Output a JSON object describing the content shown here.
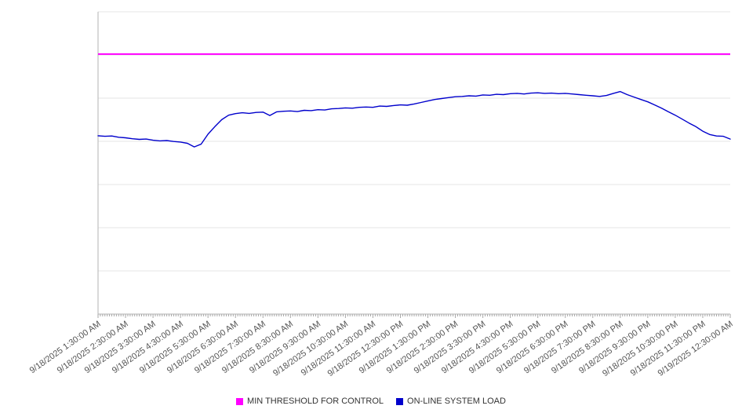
{
  "chart_data": {
    "type": "line",
    "title": "",
    "xlabel": "",
    "ylabel": "",
    "grid": true,
    "legend_position": "bottom-center",
    "y_axis_labels_visible": false,
    "ylim": [
      0,
      100
    ],
    "y_gridline_count": 8,
    "x_domain_minutes": [
      0,
      1380
    ],
    "tick_interval_minutes": 60,
    "minor_tick_interval_minutes": 5,
    "x_tick_labels": [
      "9/18/2025 1:30:00 AM",
      "9/18/2025 2:30:00 AM",
      "9/18/2025 3:30:00 AM",
      "9/18/2025 4:30:00 AM",
      "9/18/2025 5:30:00 AM",
      "9/18/2025 6:30:00 AM",
      "9/18/2025 7:30:00 AM",
      "9/18/2025 8:30:00 AM",
      "9/18/2025 9:30:00 AM",
      "9/18/2025 10:30:00 AM",
      "9/18/2025 11:30:00 AM",
      "9/18/2025 12:30:00 PM",
      "9/18/2025 1:30:00 PM",
      "9/18/2025 2:30:00 PM",
      "9/18/2025 3:30:00 PM",
      "9/18/2025 4:30:00 PM",
      "9/18/2025 5:30:00 PM",
      "9/18/2025 6:30:00 PM",
      "9/18/2025 7:30:00 PM",
      "9/18/2025 8:30:00 PM",
      "9/18/2025 9:30:00 PM",
      "9/18/2025 10:30:00 PM",
      "9/18/2025 11:30:00 PM",
      "9/19/2025 12:30:00 AM"
    ],
    "series": [
      {
        "name": "MIN THRESHOLD FOR CONTROL",
        "type": "threshold-line",
        "color": "#ff00ff",
        "value": 86
      },
      {
        "name": "ON-LINE SYSTEM LOAD",
        "type": "line",
        "color": "#0000cc",
        "start_label": "9/18/2025 1:30:00 AM",
        "step_minutes": 15,
        "values": [
          59.0,
          58.8,
          58.9,
          58.5,
          58.3,
          58.0,
          57.8,
          57.9,
          57.5,
          57.3,
          57.4,
          57.1,
          56.9,
          56.5,
          55.3,
          56.2,
          59.5,
          62.0,
          64.3,
          65.8,
          66.3,
          66.6,
          66.4,
          66.7,
          66.8,
          65.7,
          66.9,
          67.1,
          67.2,
          67.0,
          67.4,
          67.3,
          67.6,
          67.5,
          67.9,
          68.0,
          68.2,
          68.1,
          68.4,
          68.5,
          68.4,
          68.8,
          68.7,
          69.0,
          69.2,
          69.1,
          69.5,
          70.0,
          70.5,
          71.0,
          71.3,
          71.6,
          71.9,
          72.0,
          72.2,
          72.1,
          72.5,
          72.4,
          72.7,
          72.6,
          72.9,
          73.0,
          72.8,
          73.1,
          73.2,
          73.0,
          73.1,
          72.9,
          73.0,
          72.8,
          72.6,
          72.4,
          72.2,
          72.0,
          72.3,
          73.0,
          73.6,
          72.6,
          71.8,
          71.0,
          70.2,
          69.2,
          68.1,
          66.9,
          65.8,
          64.5,
          63.2,
          62.0,
          60.5,
          59.4,
          58.9,
          58.8,
          57.9
        ]
      }
    ]
  },
  "colors": {
    "gridline": "#e6e6e6",
    "axis": "#b3b3b3",
    "tick": "#a6a6a6",
    "axis_label_text": "#545454",
    "legend_text": "#333333",
    "background": "#ffffff"
  }
}
